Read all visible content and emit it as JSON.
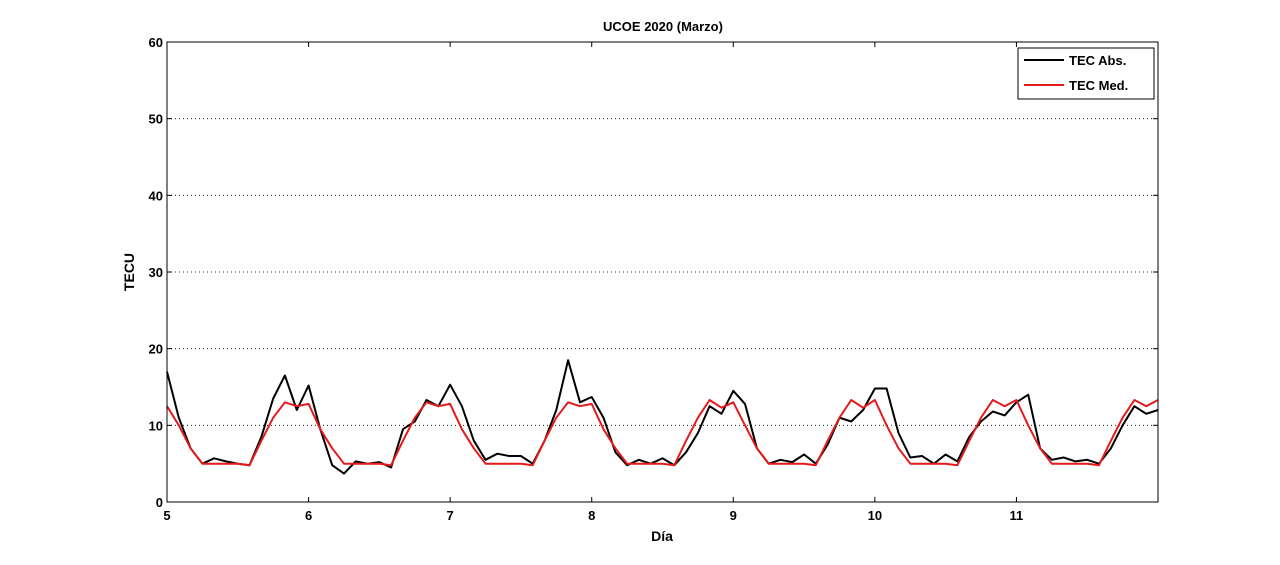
{
  "chart_data": {
    "type": "line",
    "title": "UCOE 2020 (Marzo)",
    "xlabel": "Día",
    "ylabel": "TECU",
    "xlim": [
      5,
      12
    ],
    "ylim": [
      0,
      60
    ],
    "xticks": [
      5,
      6,
      7,
      8,
      9,
      10,
      11
    ],
    "yticks": [
      0,
      10,
      20,
      30,
      40,
      50,
      60
    ],
    "grid": "horizontal dotted",
    "legend_position": "top-right",
    "series": [
      {
        "name": "TEC Abs.",
        "color": "#000000",
        "x": [
          5.0,
          5.083,
          5.167,
          5.25,
          5.333,
          5.417,
          5.5,
          5.583,
          5.667,
          5.75,
          5.833,
          5.917,
          6.0,
          6.083,
          6.167,
          6.25,
          6.333,
          6.417,
          6.5,
          6.583,
          6.667,
          6.75,
          6.833,
          6.917,
          7.0,
          7.083,
          7.167,
          7.25,
          7.333,
          7.417,
          7.5,
          7.583,
          7.667,
          7.75,
          7.833,
          7.917,
          8.0,
          8.083,
          8.167,
          8.25,
          8.333,
          8.417,
          8.5,
          8.583,
          8.667,
          8.75,
          8.833,
          8.917,
          9.0,
          9.083,
          9.167,
          9.25,
          9.333,
          9.417,
          9.5,
          9.583,
          9.667,
          9.75,
          9.833,
          9.917,
          10.0,
          10.083,
          10.167,
          10.25,
          10.333,
          10.417,
          10.5,
          10.583,
          10.667,
          10.75,
          10.833,
          10.917,
          11.0,
          11.083,
          11.167,
          11.25,
          11.333,
          11.417,
          11.5,
          11.583,
          11.667,
          11.75,
          11.833,
          11.917,
          12.0
        ],
        "y": [
          17.0,
          11.0,
          7.0,
          5.0,
          5.7,
          5.3,
          5.0,
          4.8,
          8.5,
          13.5,
          16.5,
          12.0,
          15.2,
          9.5,
          4.8,
          3.7,
          5.3,
          5.0,
          5.2,
          4.5,
          9.5,
          10.5,
          13.3,
          12.5,
          15.3,
          12.5,
          8.0,
          5.5,
          6.3,
          6.0,
          6.0,
          5.0,
          8.0,
          12.0,
          18.5,
          13.0,
          13.7,
          11.0,
          6.5,
          4.8,
          5.5,
          5.0,
          5.7,
          4.8,
          6.5,
          9.0,
          12.5,
          11.5,
          14.5,
          12.8,
          7.0,
          5.0,
          5.5,
          5.2,
          6.2,
          5.0,
          7.5,
          11.0,
          10.5,
          12.0,
          14.8,
          14.8,
          9.0,
          5.8,
          6.0,
          5.0,
          6.2,
          5.3,
          8.5,
          10.5,
          11.8,
          11.3,
          13.0,
          14.0,
          7.0,
          5.5,
          5.8,
          5.3,
          5.5,
          5.0,
          7.0,
          10.0,
          12.5,
          11.5,
          12.0
        ]
      },
      {
        "name": "TEC Med.",
        "color": "#e41a1c",
        "x": [
          5.0,
          5.083,
          5.167,
          5.25,
          5.333,
          5.417,
          5.5,
          5.583,
          5.667,
          5.75,
          5.833,
          5.917,
          6.0,
          6.083,
          6.167,
          6.25,
          6.333,
          6.417,
          6.5,
          6.583,
          6.667,
          6.75,
          6.833,
          6.917,
          7.0,
          7.083,
          7.167,
          7.25,
          7.333,
          7.417,
          7.5,
          7.583,
          7.667,
          7.75,
          7.833,
          7.917,
          8.0,
          8.083,
          8.167,
          8.25,
          8.333,
          8.417,
          8.5,
          8.583,
          8.667,
          8.75,
          8.833,
          8.917,
          9.0,
          9.083,
          9.167,
          9.25,
          9.333,
          9.417,
          9.5,
          9.583,
          9.667,
          9.75,
          9.833,
          9.917,
          10.0,
          10.083,
          10.167,
          10.25,
          10.333,
          10.417,
          10.5,
          10.583,
          10.667,
          10.75,
          10.833,
          10.917,
          11.0,
          11.083,
          11.167,
          11.25,
          11.333,
          11.417,
          11.5,
          11.583,
          11.667,
          11.75,
          11.833,
          11.917,
          12.0
        ],
        "y": [
          12.5,
          10.0,
          7.0,
          5.0,
          5.0,
          5.0,
          5.0,
          4.8,
          8.0,
          11.0,
          13.0,
          12.5,
          12.8,
          9.5,
          7.0,
          5.0,
          5.0,
          5.0,
          5.0,
          4.8,
          8.0,
          11.0,
          13.0,
          12.5,
          12.8,
          9.5,
          7.0,
          5.0,
          5.0,
          5.0,
          5.0,
          4.8,
          8.0,
          11.0,
          13.0,
          12.5,
          12.8,
          9.5,
          7.0,
          5.0,
          5.0,
          5.0,
          5.0,
          4.8,
          8.0,
          11.0,
          13.3,
          12.3,
          13.0,
          10.0,
          7.0,
          5.0,
          5.0,
          5.0,
          5.0,
          4.8,
          8.0,
          11.0,
          13.3,
          12.3,
          13.3,
          10.0,
          7.0,
          5.0,
          5.0,
          5.0,
          5.0,
          4.8,
          8.0,
          11.0,
          13.3,
          12.5,
          13.3,
          10.0,
          7.0,
          5.0,
          5.0,
          5.0,
          5.0,
          4.8,
          8.0,
          11.0,
          13.3,
          12.5,
          13.3
        ]
      }
    ]
  }
}
